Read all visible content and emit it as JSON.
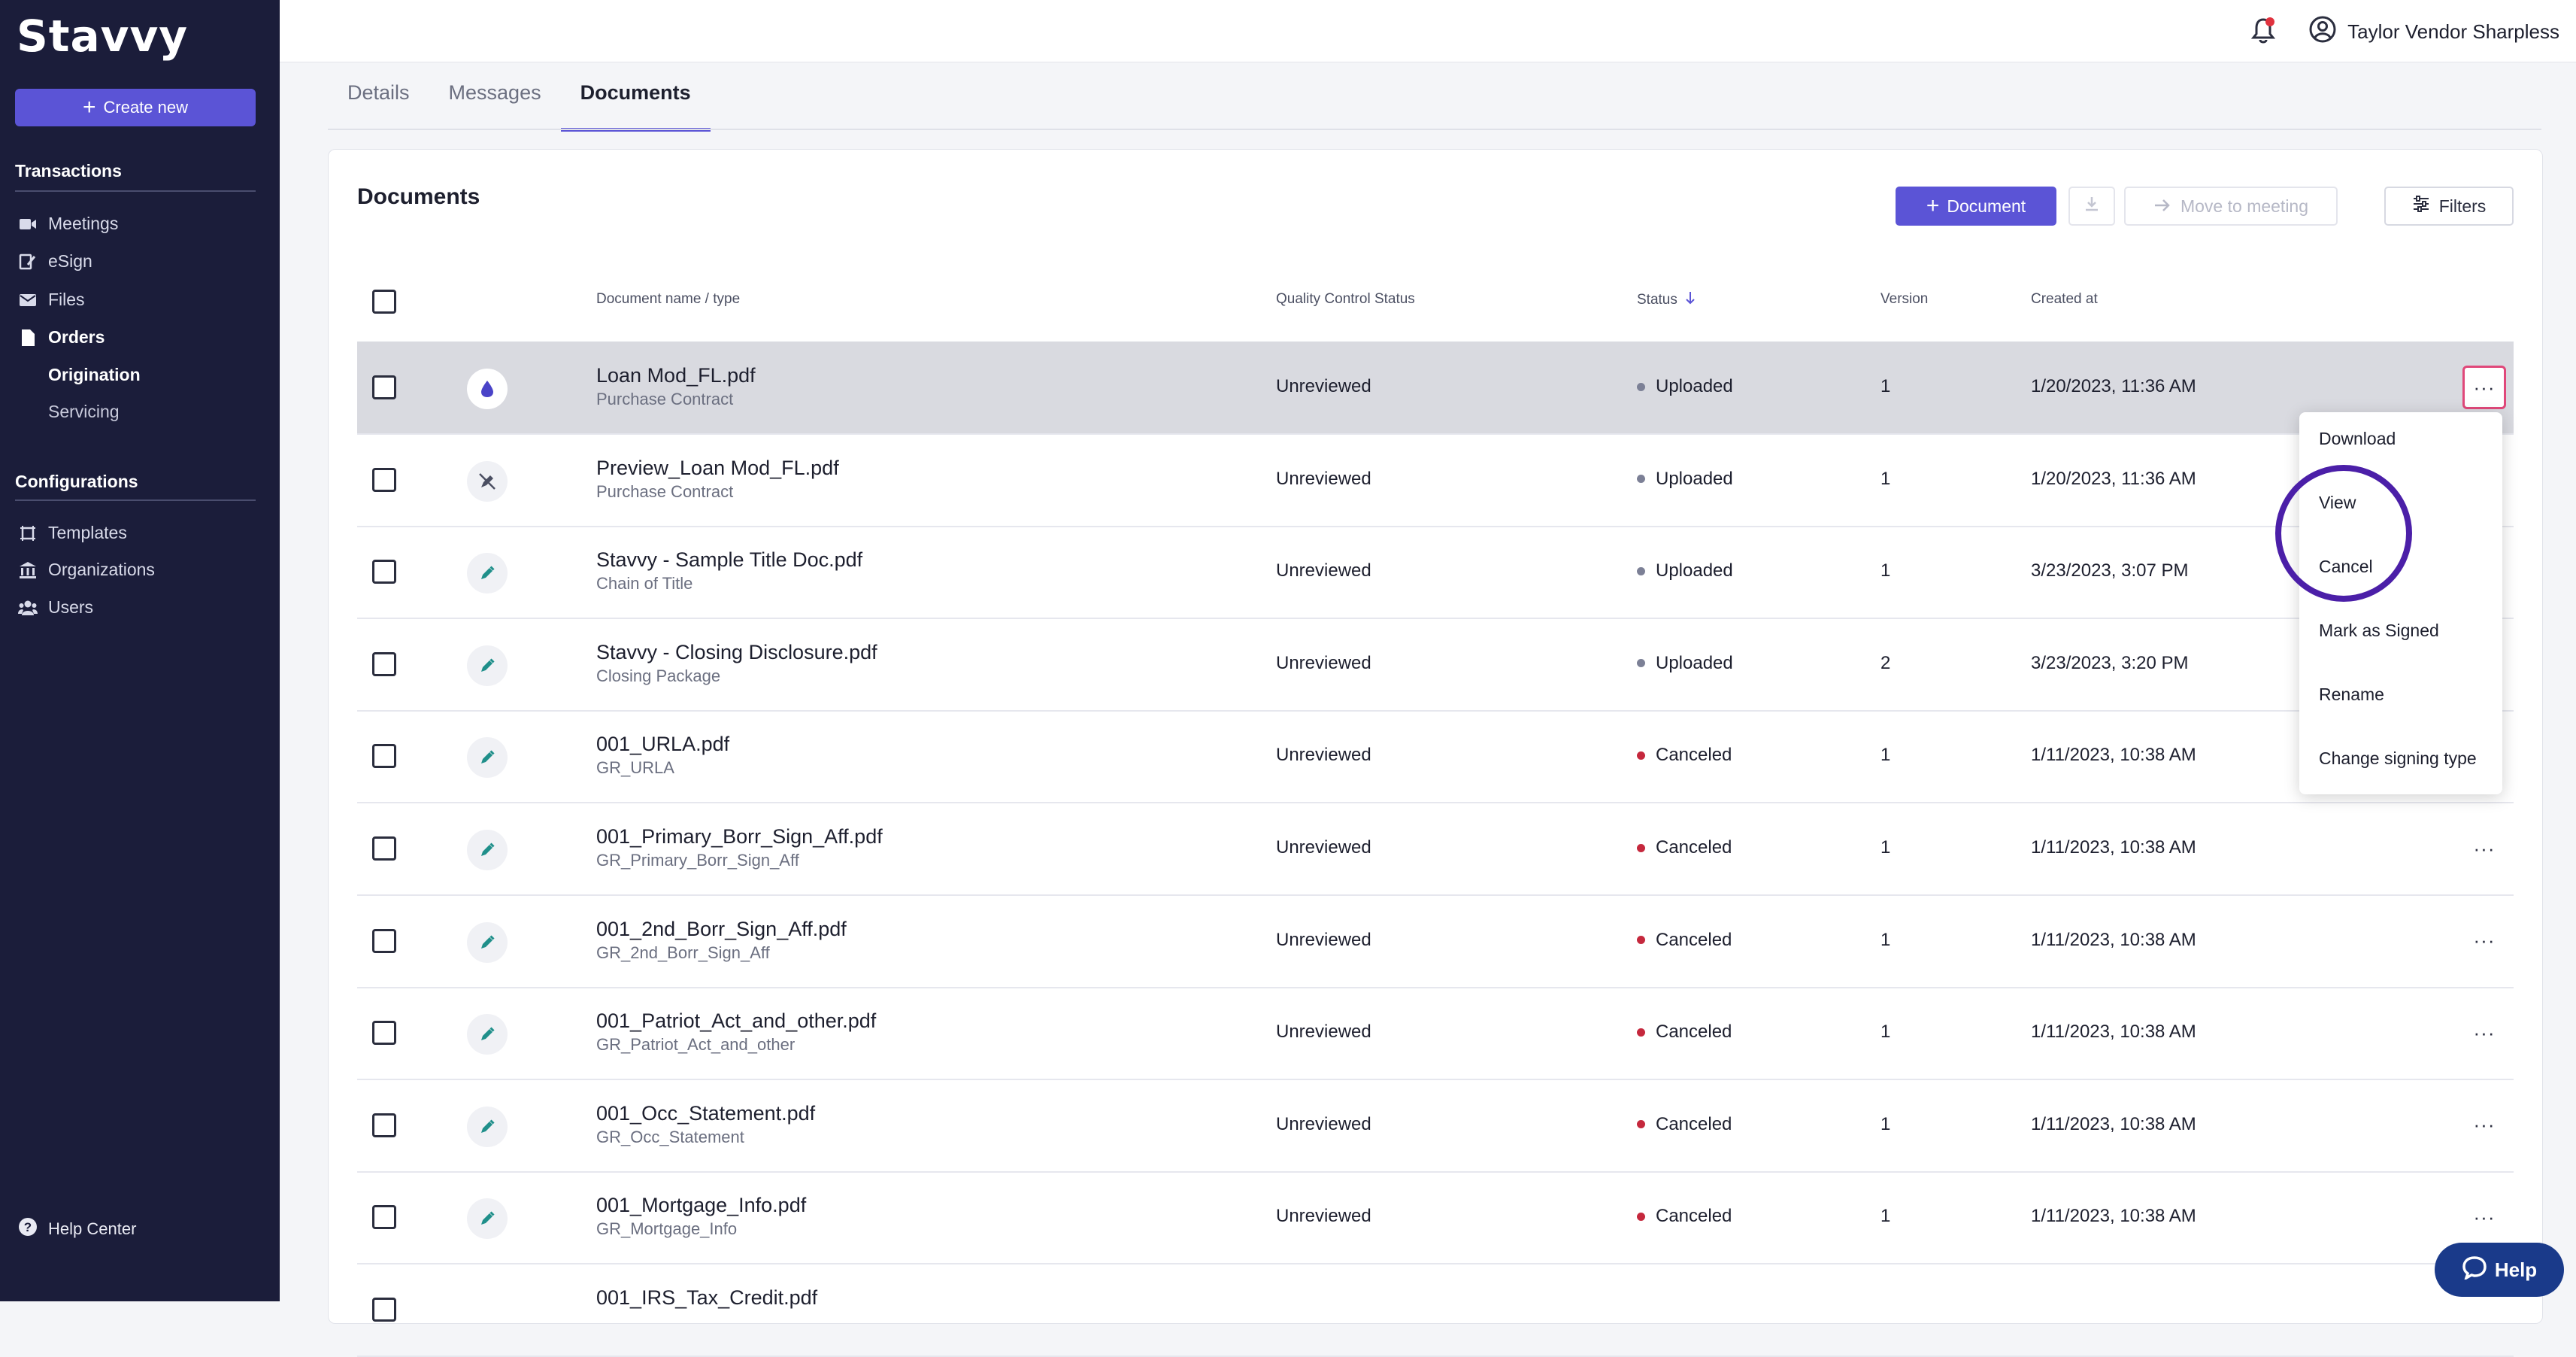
{
  "brand": {
    "logo": "Stavvy",
    "accent": "#5b54d6",
    "sidebar_bg": "#1b1d3a"
  },
  "sidebar": {
    "create_label": "Create new",
    "transactions_title": "Transactions",
    "transactions": [
      {
        "label": "Meetings",
        "icon": "video-icon"
      },
      {
        "label": "eSign",
        "icon": "signature-icon"
      },
      {
        "label": "Files",
        "icon": "mail-icon"
      },
      {
        "label": "Orders",
        "icon": "document-icon"
      }
    ],
    "orders_sub": [
      "Origination",
      "Servicing"
    ],
    "configurations_title": "Configurations",
    "configurations": [
      {
        "label": "Templates",
        "icon": "template-icon"
      },
      {
        "label": "Organizations",
        "icon": "bank-icon"
      },
      {
        "label": "Users",
        "icon": "users-icon"
      }
    ],
    "help_center": "Help Center"
  },
  "topbar": {
    "user_name": "Taylor Vendor Sharpless"
  },
  "tabs": [
    "Details",
    "Messages",
    "Documents"
  ],
  "card": {
    "title": "Documents",
    "add_document": "Document",
    "move_to_meeting": "Move to meeting",
    "filters": "Filters"
  },
  "table": {
    "headers": {
      "name": "Document name / type",
      "qc": "Quality Control Status",
      "status": "Status",
      "version": "Version",
      "created": "Created at"
    },
    "rows": [
      {
        "name": "Loan Mod_FL.pdf",
        "type": "Purchase Contract",
        "qc": "Unreviewed",
        "status": "Uploaded",
        "version": "1",
        "created": "1/20/2023, 11:36 AM",
        "icon": "droplet-icon"
      },
      {
        "name": "Preview_Loan Mod_FL.pdf",
        "type": "Purchase Contract",
        "qc": "Unreviewed",
        "status": "Uploaded",
        "version": "1",
        "created": "1/20/2023, 11:36 AM",
        "icon": "pen-off-icon"
      },
      {
        "name": "Stavvy - Sample Title Doc.pdf",
        "type": "Chain of Title",
        "qc": "Unreviewed",
        "status": "Uploaded",
        "version": "1",
        "created": "3/23/2023, 3:07 PM",
        "icon": "pencil-icon"
      },
      {
        "name": "Stavvy - Closing Disclosure.pdf",
        "type": "Closing Package",
        "qc": "Unreviewed",
        "status": "Uploaded",
        "version": "2",
        "created": "3/23/2023, 3:20 PM",
        "icon": "pencil-icon"
      },
      {
        "name": "001_URLA.pdf",
        "type": "GR_URLA",
        "qc": "Unreviewed",
        "status": "Canceled",
        "version": "1",
        "created": "1/11/2023, 10:38 AM",
        "icon": "pencil-icon"
      },
      {
        "name": "001_Primary_Borr_Sign_Aff.pdf",
        "type": "GR_Primary_Borr_Sign_Aff",
        "qc": "Unreviewed",
        "status": "Canceled",
        "version": "1",
        "created": "1/11/2023, 10:38 AM",
        "icon": "pencil-icon"
      },
      {
        "name": "001_2nd_Borr_Sign_Aff.pdf",
        "type": "GR_2nd_Borr_Sign_Aff",
        "qc": "Unreviewed",
        "status": "Canceled",
        "version": "1",
        "created": "1/11/2023, 10:38 AM",
        "icon": "pencil-icon"
      },
      {
        "name": "001_Patriot_Act_and_other.pdf",
        "type": "GR_Patriot_Act_and_other",
        "qc": "Unreviewed",
        "status": "Canceled",
        "version": "1",
        "created": "1/11/2023, 10:38 AM",
        "icon": "pencil-icon"
      },
      {
        "name": "001_Occ_Statement.pdf",
        "type": "GR_Occ_Statement",
        "qc": "Unreviewed",
        "status": "Canceled",
        "version": "1",
        "created": "1/11/2023, 10:38 AM",
        "icon": "pencil-icon"
      },
      {
        "name": "001_Mortgage_Info.pdf",
        "type": "GR_Mortgage_Info",
        "qc": "Unreviewed",
        "status": "Canceled",
        "version": "1",
        "created": "1/11/2023, 10:38 AM",
        "icon": "pencil-icon"
      },
      {
        "name": "001_IRS_Tax_Credit.pdf",
        "type": "",
        "qc": "",
        "status": "",
        "version": "",
        "created": "",
        "icon": ""
      }
    ]
  },
  "status_colors": {
    "Uploaded": "#7c8096",
    "Canceled": "#c5283d"
  },
  "row_menu": [
    "Download",
    "View",
    "Cancel",
    "Mark as Signed",
    "Rename",
    "Change signing type"
  ],
  "help_button": "Help"
}
